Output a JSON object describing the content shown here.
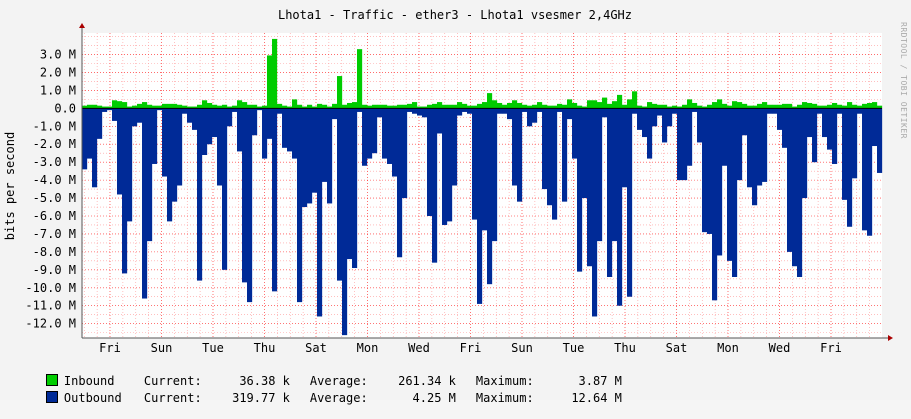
{
  "chart_data": {
    "type": "area",
    "title": "Lhota1 - Traffic - ether3 - Lhota1 vsesmer 2,4GHz",
    "ylabel": "bits per second",
    "watermark": "RRDTOOL / TOBI OETIKER",
    "ylim": [
      -12.8,
      4.2
    ],
    "y_ticks": [
      3.0,
      2.0,
      1.0,
      0.0,
      -1.0,
      -2.0,
      -3.0,
      -4.0,
      -5.0,
      -6.0,
      -7.0,
      -8.0,
      -9.0,
      -10.0,
      -11.0,
      -12.0
    ],
    "y_tick_labels": [
      "3.0 M",
      "2.0 M",
      "1.0 M",
      "0.0",
      "-1.0 M",
      "-2.0 M",
      "-3.0 M",
      "-4.0 M",
      "-5.0 M",
      "-6.0 M",
      "-7.0 M",
      "-8.0 M",
      "-9.0 M",
      "-10.0 M",
      "-11.0 M",
      "-12.0 M"
    ],
    "x_tick_labels": [
      "Fri",
      "Sun",
      "Tue",
      "Thu",
      "Sat",
      "Mon",
      "Wed",
      "Fri",
      "Sun",
      "Tue",
      "Thu",
      "Sat",
      "Mon",
      "Wed",
      "Fri"
    ],
    "grid": true,
    "colors": {
      "inbound": "#00cc00",
      "outbound": "#002a97",
      "major_grid": "#ff0000",
      "minor_grid": "#ff9999",
      "background": "#ffffff"
    },
    "series": [
      {
        "name": "Inbound",
        "values": [
          0.15,
          0.2,
          0.2,
          0.15,
          0.1,
          0.1,
          0.45,
          0.4,
          0.35,
          0.1,
          0.15,
          0.25,
          0.35,
          0.2,
          0.15,
          0.15,
          0.25,
          0.25,
          0.25,
          0.2,
          0.15,
          0.1,
          0.1,
          0.2,
          0.45,
          0.3,
          0.2,
          0.15,
          0.2,
          0.1,
          0.15,
          0.45,
          0.35,
          0.2,
          0.2,
          0.1,
          0.15,
          2.95,
          3.87,
          0.25,
          0.15,
          0.1,
          0.5,
          0.2,
          0.1,
          0.2,
          0.1,
          0.25,
          0.2,
          0.1,
          0.25,
          1.8,
          0.2,
          0.3,
          0.35,
          3.3,
          0.2,
          0.15,
          0.2,
          0.2,
          0.2,
          0.15,
          0.15,
          0.2,
          0.2,
          0.25,
          0.35,
          0.1,
          0.1,
          0.2,
          0.25,
          0.35,
          0.2,
          0.2,
          0.2,
          0.35,
          0.25,
          0.15,
          0.15,
          0.25,
          0.35,
          0.85,
          0.45,
          0.3,
          0.2,
          0.3,
          0.45,
          0.3,
          0.2,
          0.15,
          0.2,
          0.35,
          0.2,
          0.15,
          0.15,
          0.25,
          0.2,
          0.5,
          0.3,
          0.15,
          0.1,
          0.45,
          0.45,
          0.35,
          0.6,
          0.25,
          0.4,
          0.75,
          0.2,
          0.5,
          0.95,
          0.15,
          0.1,
          0.35,
          0.25,
          0.2,
          0.2,
          0.1,
          0.15,
          0.1,
          0.2,
          0.5,
          0.3,
          0.15,
          0.1,
          0.2,
          0.35,
          0.5,
          0.25,
          0.15,
          0.4,
          0.35,
          0.25,
          0.15,
          0.15,
          0.25,
          0.35,
          0.2,
          0.2,
          0.2,
          0.25,
          0.25,
          0.1,
          0.2,
          0.35,
          0.3,
          0.25,
          0.15,
          0.15,
          0.2,
          0.3,
          0.2,
          0.15,
          0.35,
          0.2,
          0.15,
          0.25,
          0.3,
          0.35,
          0.15
        ]
      },
      {
        "name": "Outbound",
        "values": [
          -3.4,
          -2.8,
          -4.4,
          -1.7,
          -0.2,
          -0.1,
          -0.7,
          -4.8,
          -9.2,
          -6.3,
          -1.0,
          -0.8,
          -10.6,
          -7.4,
          -3.1,
          -0.1,
          -3.8,
          -6.3,
          -5.2,
          -4.3,
          -0.3,
          -0.8,
          -1.2,
          -9.6,
          -2.6,
          -2.0,
          -1.6,
          -4.3,
          -9.0,
          -1.0,
          -0.2,
          -2.4,
          -9.7,
          -10.8,
          -1.5,
          -0.1,
          -2.8,
          -1.7,
          -10.2,
          -0.3,
          -2.2,
          -2.4,
          -2.8,
          -10.8,
          -5.5,
          -5.3,
          -4.7,
          -11.6,
          -4.1,
          -5.3,
          -0.6,
          -9.6,
          -12.64,
          -8.4,
          -8.9,
          -0.2,
          -3.2,
          -2.8,
          -2.5,
          -0.5,
          -2.8,
          -3.1,
          -3.8,
          -8.3,
          -5.0,
          -0.2,
          -0.3,
          -0.4,
          -0.5,
          -6.0,
          -8.6,
          -1.4,
          -6.5,
          -6.3,
          -4.3,
          -0.4,
          -0.2,
          -0.3,
          -6.2,
          -10.9,
          -6.8,
          -9.8,
          -7.4,
          -0.3,
          -0.3,
          -0.6,
          -4.3,
          -5.2,
          -0.2,
          -1.0,
          -0.8,
          -0.2,
          -4.5,
          -5.4,
          -6.2,
          -0.2,
          -5.2,
          -0.6,
          -2.8,
          -9.1,
          -5.0,
          -8.8,
          -11.6,
          -7.4,
          -0.5,
          -9.4,
          -7.4,
          -11.0,
          -4.4,
          -10.5,
          -0.3,
          -1.2,
          -1.6,
          -2.8,
          -1.0,
          -0.4,
          -1.9,
          -1.0,
          -0.3,
          -4.0,
          -4.0,
          -3.2,
          -0.2,
          -1.9,
          -6.9,
          -7.0,
          -10.7,
          -8.2,
          -3.2,
          -8.5,
          -9.4,
          -4.0,
          -1.5,
          -4.4,
          -5.4,
          -4.3,
          -4.1,
          -0.3,
          -0.3,
          -1.2,
          -2.2,
          -8.0,
          -8.8,
          -9.4,
          -5.0,
          -1.6,
          -3.0,
          -0.3,
          -1.6,
          -2.3,
          -3.1,
          -0.3,
          -5.1,
          -6.6,
          -3.9,
          -0.3,
          -6.8,
          -7.1,
          -2.1,
          -3.6,
          -0.4,
          -3.5,
          -2.1,
          -2.4,
          -0.3,
          -3.5,
          -2.3,
          -3.9,
          -0.5,
          -0.6,
          -0.4
        ]
      }
    ]
  },
  "legend": {
    "inbound": {
      "label": "Inbound",
      "current_label": "Current:",
      "current": "36.38 k",
      "average_label": "Average:",
      "average": "261.34 k",
      "maximum_label": "Maximum:",
      "maximum": "3.87 M"
    },
    "outbound": {
      "label": "Outbound",
      "current_label": "Current:",
      "current": "319.77 k",
      "average_label": "Average:",
      "average": "4.25 M",
      "maximum_label": "Maximum:",
      "maximum": "12.64 M"
    }
  }
}
